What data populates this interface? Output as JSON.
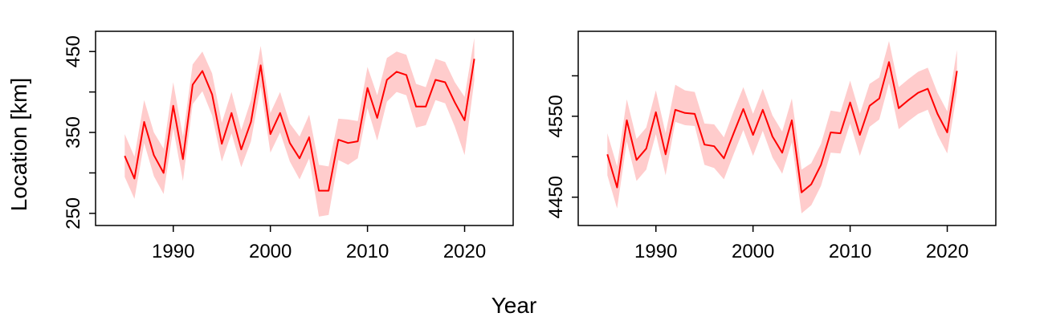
{
  "figure": {
    "xlabel": "Year",
    "ylabel": "Location [km]"
  },
  "colors": {
    "line": "#ff0000",
    "band": "#ffcccc",
    "frame": "#000000"
  },
  "chart_data": [
    {
      "type": "line",
      "title": "",
      "xlabel": "Year",
      "ylabel": "Location [km]",
      "xlim": [
        1982,
        2025
      ],
      "ylim": [
        235,
        475
      ],
      "xticks": [
        1990,
        2000,
        2010,
        2020
      ],
      "xtick_labels": [
        "1990",
        "2000",
        "2010",
        "2020"
      ],
      "yticks": [
        250,
        300,
        350,
        400,
        450
      ],
      "ytick_labels": [
        "250",
        "",
        "350",
        "",
        "450"
      ],
      "grid": false,
      "legend": "none",
      "series": [
        {
          "x": [
            1985,
            1986,
            1987,
            1988,
            1989,
            1990,
            1991,
            1992,
            1993,
            1994,
            1995,
            1996,
            1997,
            1998,
            1999,
            2000,
            2001,
            2002,
            2003,
            2004,
            2005,
            2006,
            2007,
            2008,
            2009,
            2010,
            2011,
            2012,
            2013,
            2014,
            2015,
            2016,
            2017,
            2018,
            2019,
            2020,
            2021
          ],
          "y": [
            321,
            293,
            363,
            322,
            300,
            383,
            317,
            409,
            426,
            397,
            336,
            374,
            329,
            363,
            433,
            348,
            374,
            337,
            318,
            344,
            278,
            278,
            341,
            337,
            339,
            405,
            368,
            415,
            425,
            421,
            382,
            382,
            415,
            412,
            387,
            365,
            441
          ],
          "lower": [
            295,
            268,
            337,
            296,
            274,
            355,
            290,
            385,
            401,
            371,
            314,
            349,
            307,
            339,
            407,
            325,
            350,
            314,
            292,
            318,
            246,
            248,
            316,
            310,
            318,
            380,
            340,
            388,
            400,
            396,
            356,
            359,
            390,
            386,
            357,
            322,
            414
          ],
          "upper": [
            348,
            320,
            390,
            350,
            330,
            412,
            345,
            434,
            450,
            423,
            362,
            400,
            353,
            390,
            457,
            374,
            400,
            361,
            345,
            372,
            310,
            308,
            367,
            366,
            364,
            431,
            396,
            442,
            450,
            446,
            410,
            406,
            441,
            437,
            412,
            394,
            467
          ]
        }
      ]
    },
    {
      "type": "line",
      "title": "",
      "xlabel": "Year",
      "ylabel": "",
      "xlim": [
        1982,
        2025
      ],
      "ylim": [
        4415,
        4655
      ],
      "xticks": [
        1990,
        2000,
        2010,
        2020
      ],
      "xtick_labels": [
        "1990",
        "2000",
        "2010",
        "2020"
      ],
      "yticks": [
        4450,
        4500,
        4550,
        4600
      ],
      "ytick_labels": [
        "4450",
        "",
        "4550",
        ""
      ],
      "grid": false,
      "legend": "none",
      "series": [
        {
          "x": [
            1985,
            1986,
            1987,
            1988,
            1989,
            1990,
            1991,
            1992,
            1993,
            1994,
            1995,
            1996,
            1997,
            1998,
            1999,
            2000,
            2001,
            2002,
            2003,
            2004,
            2005,
            2006,
            2007,
            2008,
            2009,
            2010,
            2011,
            2012,
            2013,
            2014,
            2015,
            2016,
            2017,
            2018,
            2019,
            2020,
            2021
          ],
          "y": [
            4503,
            4462,
            4545,
            4496,
            4510,
            4555,
            4503,
            4558,
            4554,
            4553,
            4515,
            4513,
            4498,
            4529,
            4559,
            4527,
            4558,
            4525,
            4505,
            4545,
            4456,
            4466,
            4490,
            4530,
            4529,
            4567,
            4527,
            4563,
            4572,
            4617,
            4560,
            4570,
            4579,
            4584,
            4553,
            4530,
            4606
          ],
          "lower": [
            4477,
            4436,
            4519,
            4470,
            4484,
            4528,
            4477,
            4543,
            4539,
            4538,
            4490,
            4486,
            4472,
            4503,
            4533,
            4501,
            4532,
            4499,
            4479,
            4518,
            4430,
            4440,
            4464,
            4505,
            4504,
            4541,
            4501,
            4537,
            4546,
            4591,
            4534,
            4544,
            4553,
            4558,
            4527,
            4504,
            4580
          ],
          "upper": [
            4529,
            4488,
            4571,
            4522,
            4536,
            4582,
            4529,
            4589,
            4582,
            4580,
            4541,
            4540,
            4524,
            4556,
            4586,
            4553,
            4584,
            4551,
            4531,
            4572,
            4484,
            4492,
            4516,
            4557,
            4555,
            4594,
            4553,
            4590,
            4598,
            4643,
            4586,
            4596,
            4605,
            4610,
            4579,
            4556,
            4632
          ]
        }
      ]
    }
  ]
}
